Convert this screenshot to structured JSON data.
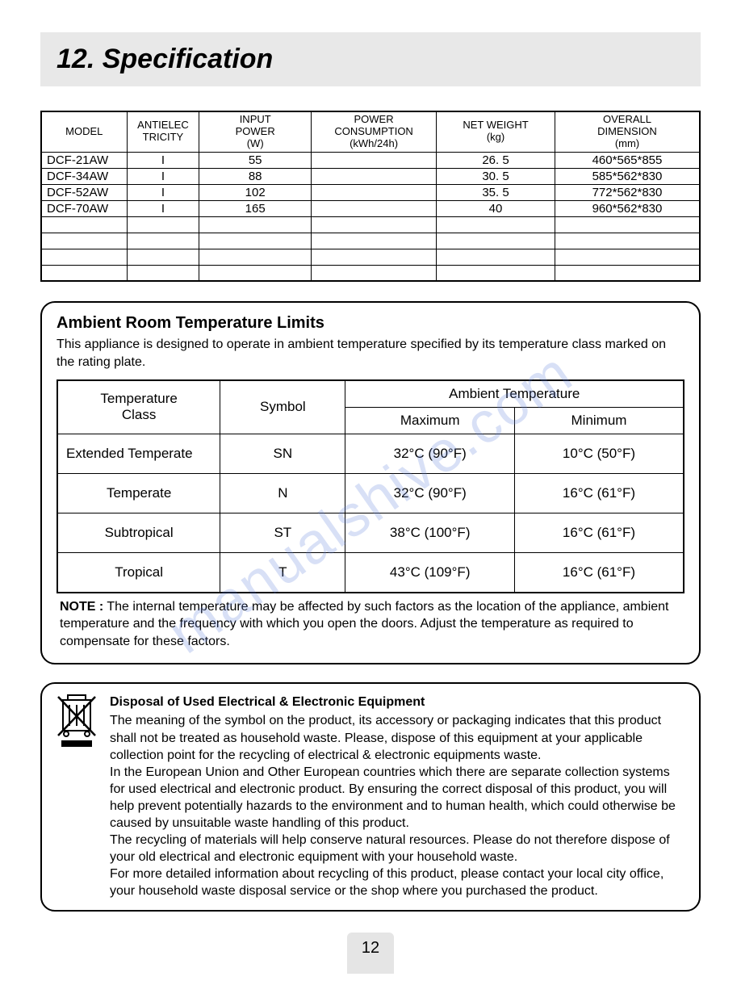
{
  "watermark": "manualshive.com",
  "title": "12. Specification",
  "specTable": {
    "headers": [
      "MODEL",
      "ANTIELEC\nTRICITY",
      "INPUT\nPOWER\n(W)",
      "POWER\nCONSUMPTION\n(kWh/24h)",
      "NET WEIGHT\n(kg)",
      "OVERALL\nDIMENSION\n(mm)"
    ],
    "rows": [
      [
        "DCF-21AW",
        "I",
        "55",
        "",
        "26. 5",
        "460*565*855"
      ],
      [
        "DCF-34AW",
        "I",
        "88",
        "",
        "30. 5",
        "585*562*830"
      ],
      [
        "DCF-52AW",
        "I",
        "102",
        "",
        "35. 5",
        "772*562*830"
      ],
      [
        "DCF-70AW",
        "I",
        "165",
        "",
        "40",
        "960*562*830"
      ],
      [
        "",
        "",
        "",
        "",
        "",
        ""
      ],
      [
        "",
        "",
        "",
        "",
        "",
        ""
      ],
      [
        "",
        "",
        "",
        "",
        "",
        ""
      ],
      [
        "",
        "",
        "",
        "",
        "",
        ""
      ]
    ],
    "col_widths_pct": [
      13,
      11,
      17,
      19,
      18,
      22
    ]
  },
  "ambient": {
    "title": "Ambient Room Temperature Limits",
    "intro": "This appliance is designed to operate in ambient temperature specified by its temperature class marked on the rating plate.",
    "headers": {
      "class": "Temperature\nClass",
      "symbol": "Symbol",
      "ambient": "Ambient Temperature",
      "max": "Maximum",
      "min": "Minimum"
    },
    "rows": [
      [
        "Extended Temperate",
        "SN",
        "32°C (90°F)",
        "10°C (50°F)"
      ],
      [
        "Temperate",
        "N",
        "32°C (90°F)",
        "16°C (61°F)"
      ],
      [
        "Subtropical",
        "ST",
        "38°C (100°F)",
        "16°C (61°F)"
      ],
      [
        "Tropical",
        "T",
        "43°C (109°F)",
        "16°C (61°F)"
      ]
    ],
    "note_label": "NOTE :",
    "note": "The internal temperature may be affected by such factors as the location of the appliance, ambient temperature and the frequency with which you open the doors. Adjust the temperature as required to compensate for these factors."
  },
  "disposal": {
    "title": "Disposal of Used Electrical & Electronic Equipment",
    "paras": [
      "The meaning of the symbol on the product, its accessory or packaging indicates that this product shall not be treated as household waste. Please, dispose of this equipment at your applicable collection point for the recycling of electrical & electronic equipments waste.",
      "In the European Union and Other European countries which there are separate collection systems for used electrical and electronic product. By ensuring the correct disposal of this product, you will help prevent potentially hazards to the environment and to human health, which could otherwise be caused by unsuitable waste handling of this product.",
      "The recycling of materials will help conserve natural resources. Please do not therefore dispose of your old electrical and electronic equipment with your household waste.",
      "For more detailed information about recycling of this product, please contact your local city office, your household waste disposal service or the shop where you purchased the product."
    ]
  },
  "page_number": "12"
}
